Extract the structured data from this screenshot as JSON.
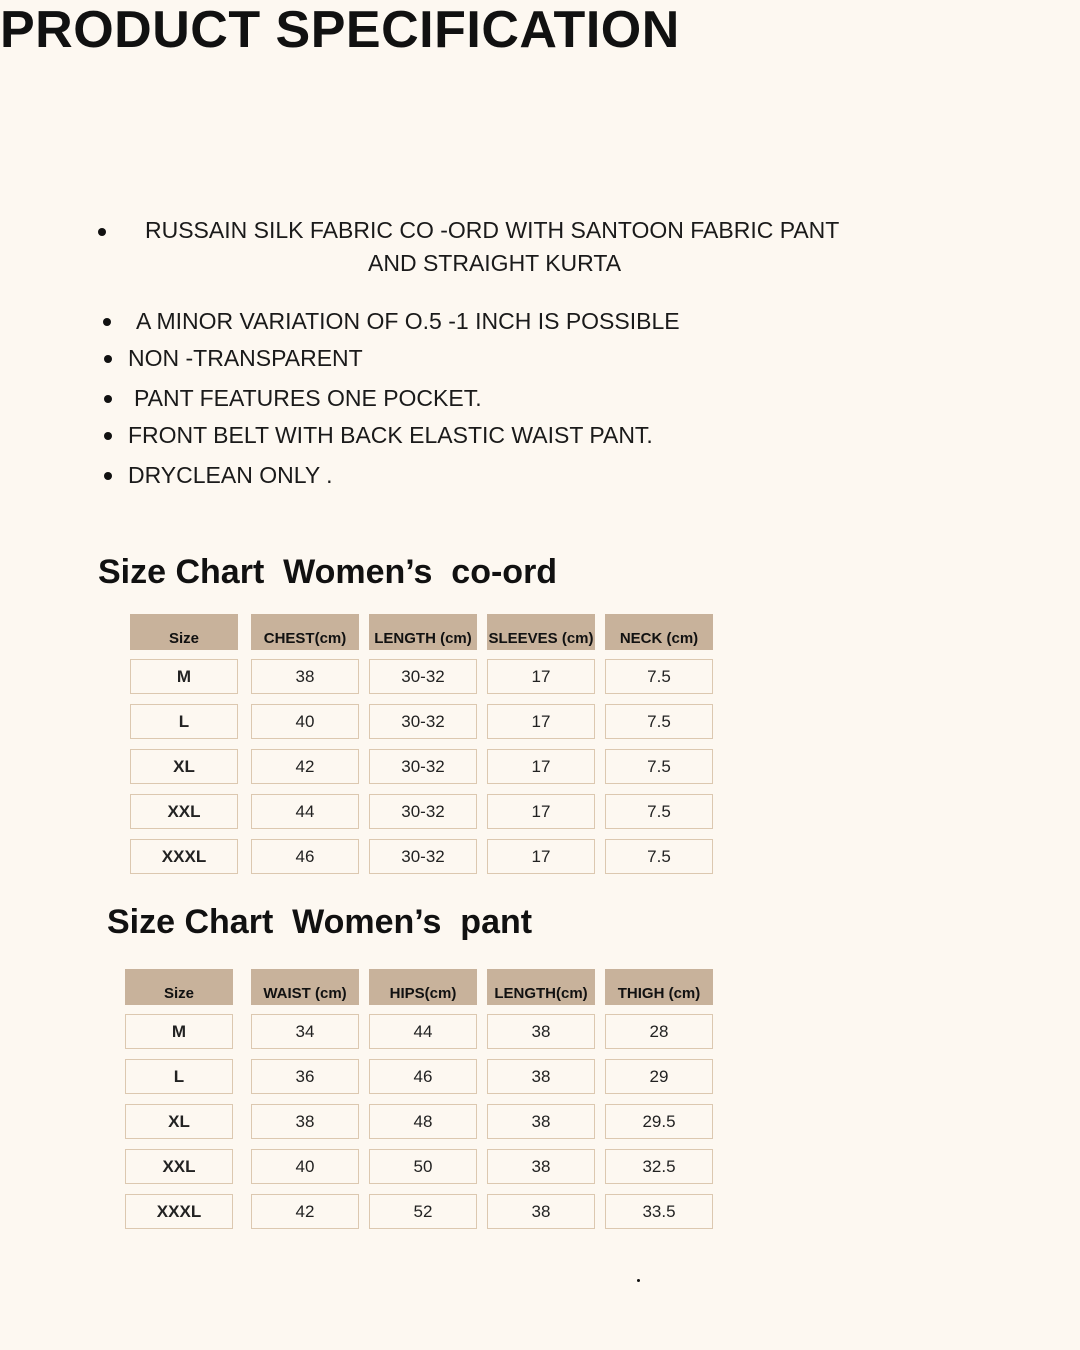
{
  "title": "PRODUCT SPECIFICATION",
  "bullets": {
    "first_line1": "RUSSAIN SILK  FABRIC CO -ORD WITH SANTOON FABRIC PANT",
    "first_line2": "AND STRAIGHT KURTA",
    "items": [
      "A MINOR VARIATION OF O.5 -1 INCH IS POSSIBLE",
      "NON -TRANSPARENT",
      "PANT FEATURES ONE POCKET.",
      "FRONT BELT WITH BACK ELASTIC WAIST PANT.",
      "DRYCLEAN ONLY ."
    ]
  },
  "coord_chart": {
    "heading": "Size Chart  Women’s  co-ord",
    "headers": [
      "Size",
      "CHEST(cm)",
      "LENGTH (cm)",
      "SLEEVES (cm)",
      "NECK (cm)"
    ],
    "rows": [
      [
        "M",
        "38",
        "30-32",
        "17",
        "7.5"
      ],
      [
        "L",
        "40",
        "30-32",
        "17",
        "7.5"
      ],
      [
        "XL",
        "42",
        "30-32",
        "17",
        "7.5"
      ],
      [
        "XXL",
        "44",
        "30-32",
        "17",
        "7.5"
      ],
      [
        "XXXL",
        "46",
        "30-32",
        "17",
        "7.5"
      ]
    ]
  },
  "pant_chart": {
    "heading": "Size Chart  Women’s  pant",
    "headers": [
      "Size",
      "WAIST (cm)",
      "HIPS(cm)",
      "LENGTH(cm)",
      "THIGH (cm)"
    ],
    "rows": [
      [
        "M",
        "34",
        "44",
        "38",
        "28"
      ],
      [
        "L",
        "36",
        "46",
        "38",
        "29"
      ],
      [
        "XL",
        "38",
        "48",
        "38",
        "29.5"
      ],
      [
        "XXL",
        "40",
        "50",
        "38",
        "32.5"
      ],
      [
        "XXXL",
        "42",
        "52",
        "38",
        "33.5"
      ]
    ]
  },
  "colors": {
    "background": "#fdf8f1",
    "header_fill": "#c8b29b",
    "cell_border": "#dcc8b0"
  }
}
